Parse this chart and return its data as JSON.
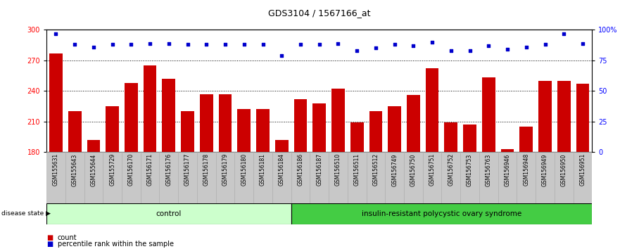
{
  "title": "GDS3104 / 1567166_at",
  "samples": [
    "GSM155631",
    "GSM155643",
    "GSM155644",
    "GSM155729",
    "GSM156170",
    "GSM156171",
    "GSM156176",
    "GSM156177",
    "GSM156178",
    "GSM156179",
    "GSM156180",
    "GSM156181",
    "GSM156184",
    "GSM156186",
    "GSM156187",
    "GSM156510",
    "GSM156511",
    "GSM156512",
    "GSM156749",
    "GSM156750",
    "GSM156751",
    "GSM156752",
    "GSM156753",
    "GSM156763",
    "GSM156946",
    "GSM156948",
    "GSM156949",
    "GSM156950",
    "GSM156951"
  ],
  "bar_values": [
    277,
    220,
    192,
    225,
    248,
    265,
    252,
    220,
    237,
    237,
    222,
    222,
    192,
    232,
    228,
    242,
    209,
    220,
    225,
    236,
    262,
    209,
    207,
    253,
    183,
    205,
    250,
    250,
    247
  ],
  "percentile_values": [
    97,
    88,
    86,
    88,
    88,
    89,
    89,
    88,
    88,
    88,
    88,
    88,
    79,
    88,
    88,
    89,
    83,
    85,
    88,
    87,
    90,
    83,
    83,
    87,
    84,
    86,
    88,
    97,
    89
  ],
  "control_count": 13,
  "ylim_left": [
    180,
    300
  ],
  "ylim_right": [
    0,
    100
  ],
  "yticks_left": [
    180,
    210,
    240,
    270,
    300
  ],
  "yticks_right": [
    0,
    25,
    50,
    75,
    100
  ],
  "ytick_right_labels": [
    "0",
    "25",
    "50",
    "75",
    "100%"
  ],
  "bar_color": "#cc0000",
  "dot_color": "#0000cc",
  "control_bg": "#ccffcc",
  "disease_bg": "#44cc44",
  "xlabel_area_bg": "#c8c8c8",
  "group_labels": [
    "control",
    "insulin-resistant polycystic ovary syndrome"
  ],
  "legend_count_label": "count",
  "legend_pct_label": "percentile rank within the sample",
  "disease_state_label": "disease state"
}
